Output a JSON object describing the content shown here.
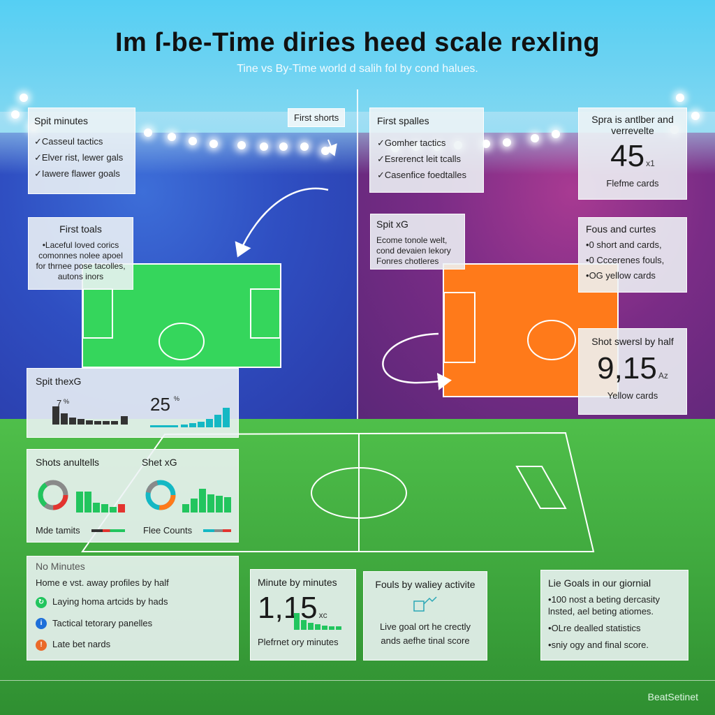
{
  "header": {
    "title": "Im ſ-be-Time diries heed scale rexling",
    "subtitle": "Tine vs By-Time world d salih fol by cond halues."
  },
  "panels": {
    "spit_minutes": {
      "title": "Spit minutes",
      "items": [
        "Casseul tactics",
        "Elver rist, lewer gals",
        "Iawere flawer goals"
      ]
    },
    "first_shorts_tag": "First shorts",
    "first_spalles": {
      "title": "First spalles",
      "items": [
        "Gomher tactics",
        "Esrerenct leit tcalls",
        "Casenfice foedtalles"
      ]
    },
    "spra_card": {
      "title": "Spra is antlber and verrevelte",
      "value": "45",
      "unit": "x1",
      "caption": "Flefme cards"
    },
    "first_toals": {
      "title": "First toals",
      "items": [
        "Laceful loved corics comonnes nolee apoel for thrnee pose tacolles, autons inors"
      ]
    },
    "spit_xg_mid": {
      "title": "Spit xG",
      "lines": [
        "Ecome tonole welt,",
        "cond devaien lekory",
        "Fonres chotleres"
      ]
    },
    "fouls_curtes": {
      "title": "Fous and curtes",
      "items": [
        "0 short and cards,",
        "0 Cccerenes fouls,",
        "OG yellow cards"
      ]
    },
    "shot_swersl": {
      "title": "Shot swersl by half",
      "value": "9,15",
      "unit": "Az",
      "caption": "Yellow cards"
    },
    "spit_thexg": {
      "title": "Spit thexG",
      "left_value": "7",
      "left_unit": "%",
      "right_value": "25",
      "right_unit": "%"
    },
    "shots_anultells": {
      "title": "Shots anultells",
      "title2": "Shet xG",
      "foot_left": "Mde tamits",
      "foot_right": "Flee Counts"
    },
    "no_minutes": {
      "title": "No Minutes",
      "subtitle": "Home e vst. away profiles by half",
      "rows": [
        "Laying homa artcids by hads",
        "Tactical tetorary panelles",
        "Late bet nards"
      ]
    },
    "minute_by_minutes": {
      "title": "Minute by minutes",
      "value": "1,15",
      "unit": "xc",
      "caption": "Plefrnet ory minutes"
    },
    "fouls_wailey": {
      "title": "Fouls by waliey activite",
      "lines": [
        "Live goal ort he crectly",
        "ands aefhe tinal score"
      ]
    },
    "lie_goals": {
      "title": "Lie Goals in our giornial",
      "items": [
        "100 nost a beting dercasity lnsted, ael beting atiomes.",
        "OLre dealled statistics",
        "sniy ogy and final score."
      ]
    }
  },
  "brand": "BeatSetinet",
  "colors": {
    "home_green": "#35d65c",
    "away_orange": "#ff7a1a",
    "bar_green": "#22c55e",
    "bar_dark": "#333333",
    "bar_teal": "#14b8c4",
    "bar_red": "#e3342f"
  }
}
